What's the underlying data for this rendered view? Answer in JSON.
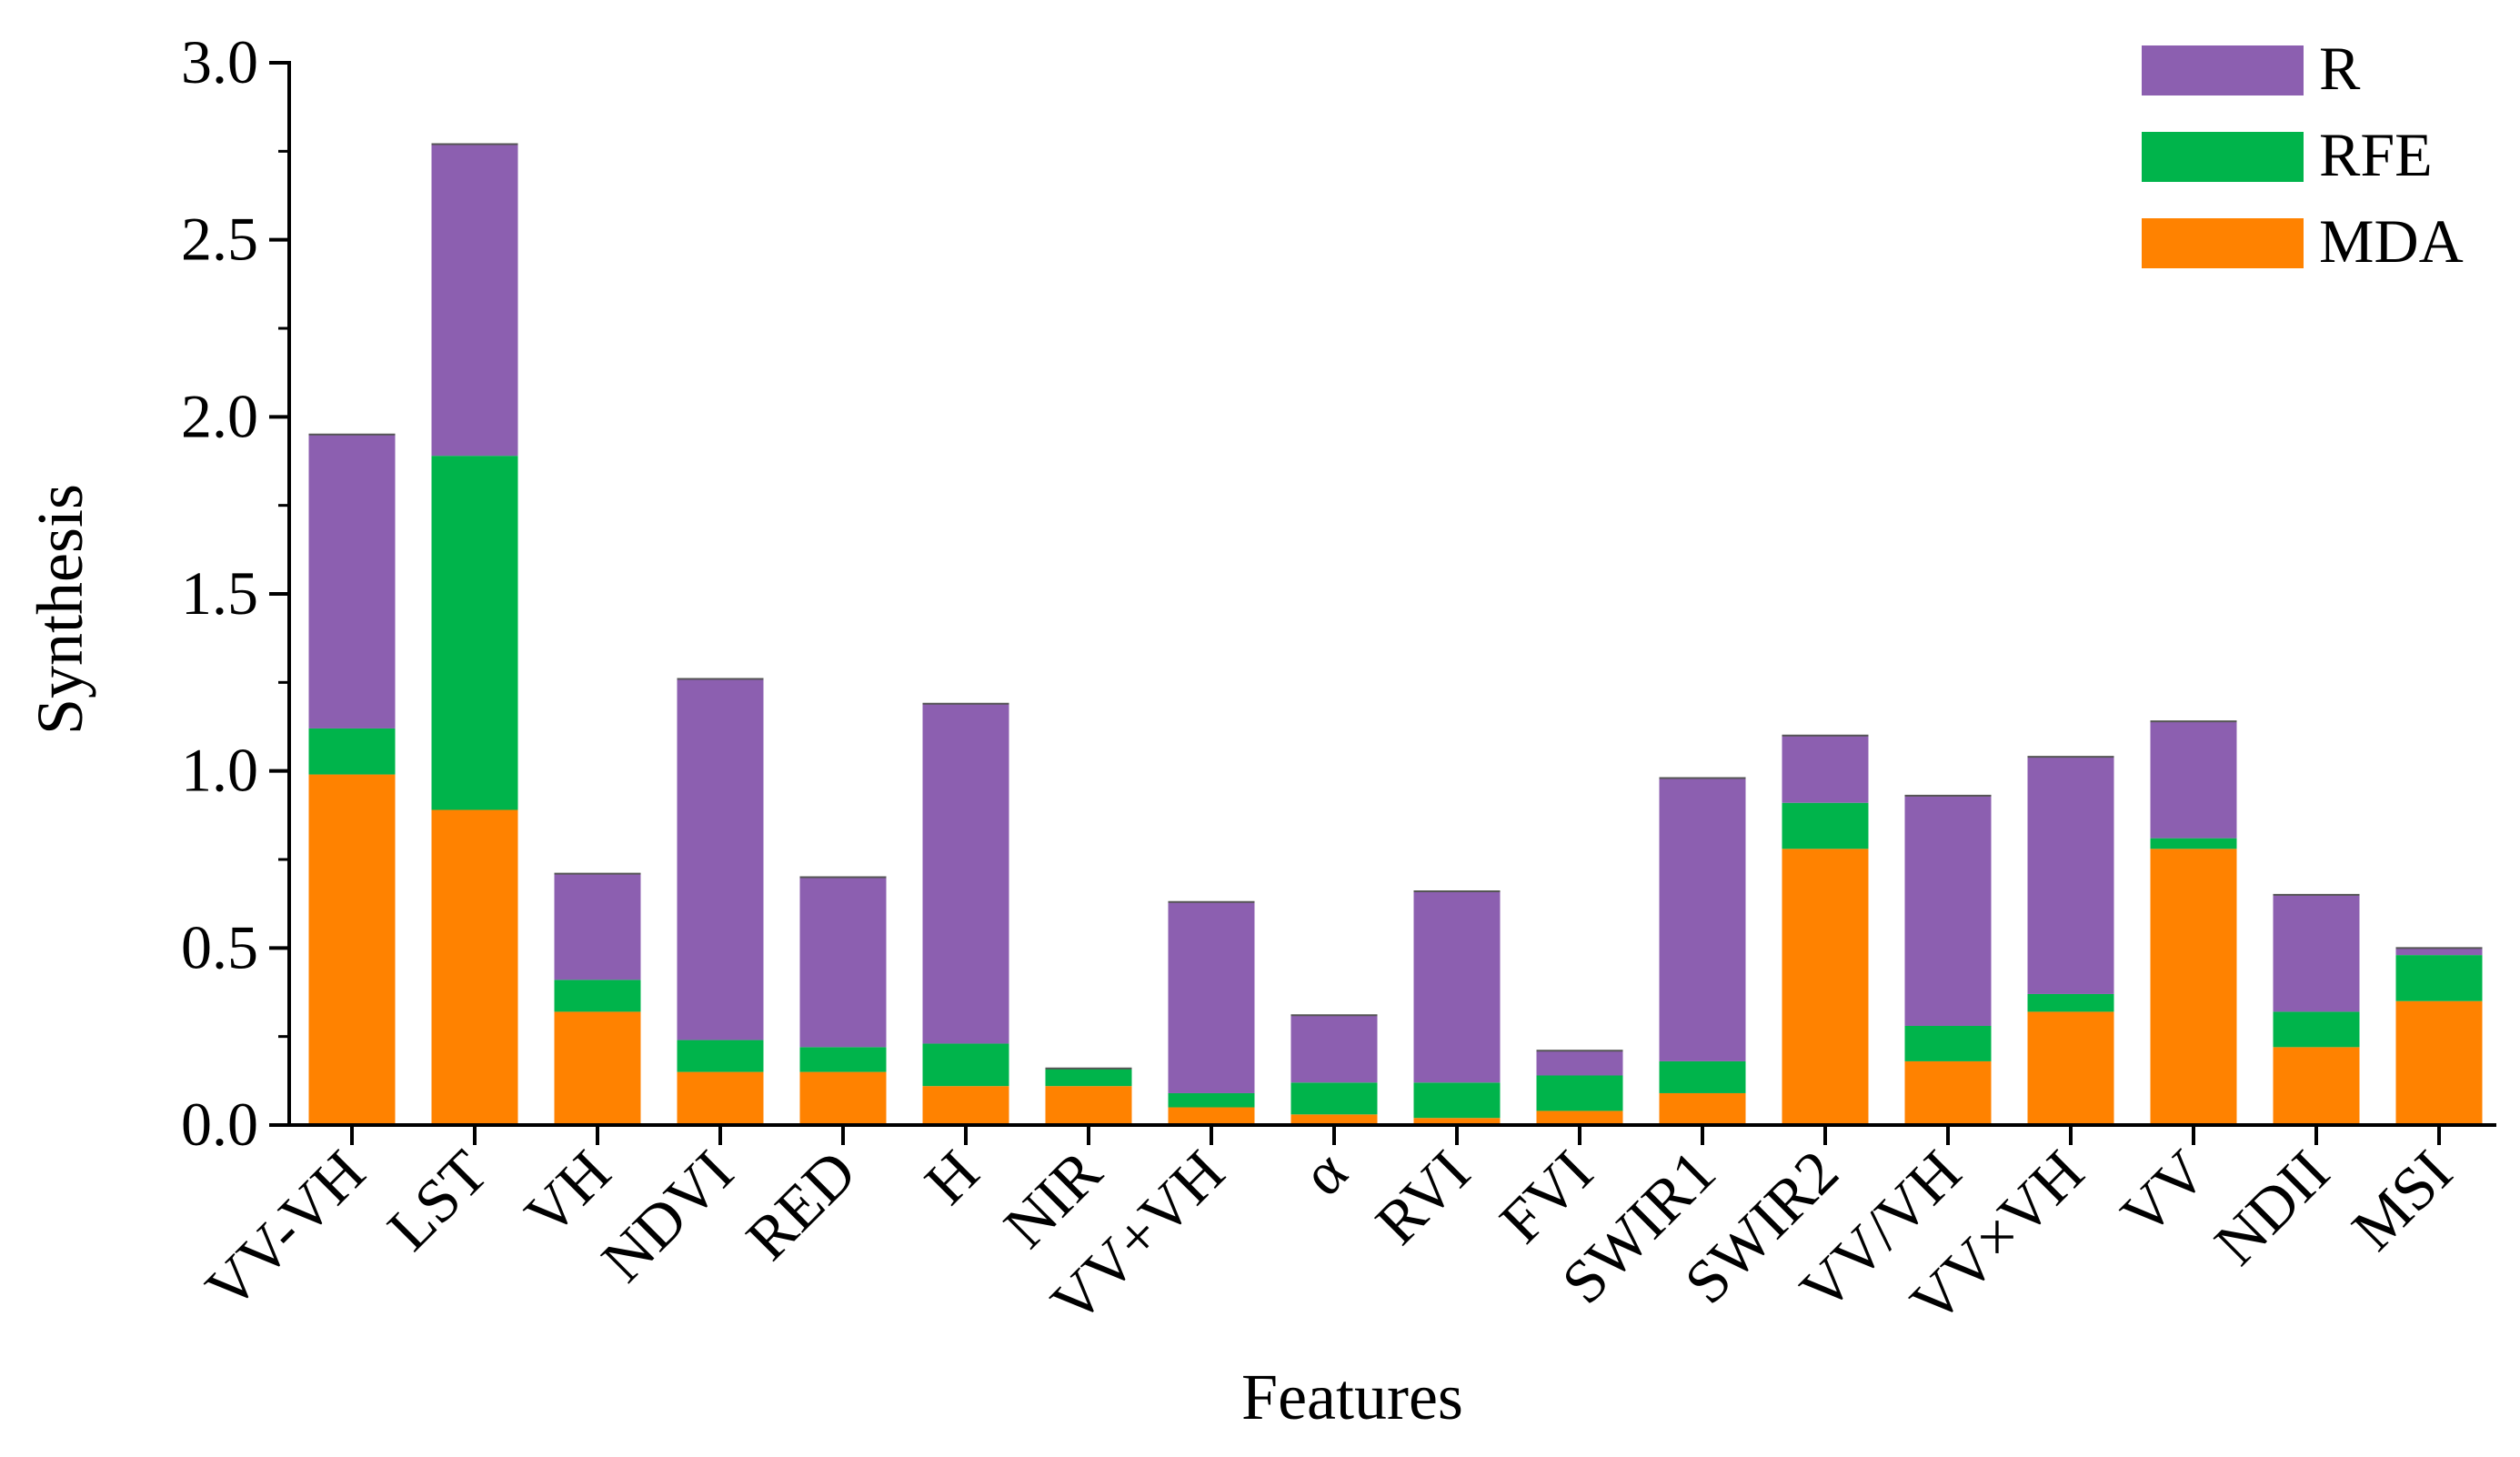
{
  "chart_data": {
    "type": "bar",
    "stacked": true,
    "title": "",
    "xlabel": "Features",
    "ylabel": "Synthesis",
    "ylim": [
      0,
      3.0
    ],
    "yticks": [
      "0.0",
      "0.5",
      "1.0",
      "1.5",
      "2.0",
      "2.5",
      "3.0"
    ],
    "legend_position": "top-right",
    "categories": [
      "VV-VH",
      "LST",
      "VH",
      "NDVI",
      "RED",
      "H",
      "NIR",
      "VV+VH",
      "α",
      "RVI",
      "FVI",
      "SWIR1",
      "SWIR2",
      "VV/VH",
      "VV×VH",
      "VV",
      "NDII",
      "MSI"
    ],
    "series": [
      {
        "name": "MDA",
        "color": "#ff8200",
        "values": [
          0.99,
          0.89,
          0.32,
          0.15,
          0.15,
          0.11,
          0.11,
          0.05,
          0.03,
          0.02,
          0.04,
          0.09,
          0.78,
          0.18,
          0.32,
          0.78,
          0.22,
          0.35
        ]
      },
      {
        "name": "RFE",
        "color": "#00b44b",
        "values": [
          0.13,
          1.0,
          0.09,
          0.09,
          0.07,
          0.12,
          0.05,
          0.04,
          0.09,
          0.1,
          0.1,
          0.09,
          0.13,
          0.1,
          0.05,
          0.03,
          0.1,
          0.13
        ]
      },
      {
        "name": "R",
        "color": "#8c5fb0",
        "values": [
          0.83,
          0.88,
          0.3,
          1.02,
          0.48,
          0.96,
          0.0,
          0.54,
          0.19,
          0.54,
          0.07,
          0.8,
          0.19,
          0.65,
          0.67,
          0.33,
          0.33,
          0.02
        ]
      }
    ],
    "legend_order": [
      "R",
      "RFE",
      "MDA"
    ]
  }
}
